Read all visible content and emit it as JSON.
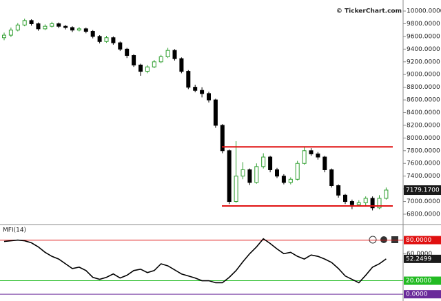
{
  "chart_data": {
    "type": "candlestick",
    "watermark": "© TickerChart.com",
    "up_color": "#2e9e2e",
    "down_color": "#000000",
    "candles": [
      {
        "o": 9580,
        "h": 9660,
        "l": 9540,
        "c": 9620
      },
      {
        "o": 9620,
        "h": 9740,
        "l": 9590,
        "c": 9700
      },
      {
        "o": 9700,
        "h": 9810,
        "l": 9680,
        "c": 9780
      },
      {
        "o": 9780,
        "h": 9880,
        "l": 9760,
        "c": 9850
      },
      {
        "o": 9850,
        "h": 9870,
        "l": 9770,
        "c": 9800
      },
      {
        "o": 9800,
        "h": 9820,
        "l": 9690,
        "c": 9720
      },
      {
        "o": 9720,
        "h": 9790,
        "l": 9700,
        "c": 9760
      },
      {
        "o": 9760,
        "h": 9830,
        "l": 9740,
        "c": 9800
      },
      {
        "o": 9800,
        "h": 9820,
        "l": 9730,
        "c": 9760
      },
      {
        "o": 9760,
        "h": 9780,
        "l": 9710,
        "c": 9740
      },
      {
        "o": 9740,
        "h": 9760,
        "l": 9670,
        "c": 9700
      },
      {
        "o": 9700,
        "h": 9750,
        "l": 9680,
        "c": 9720
      },
      {
        "o": 9720,
        "h": 9740,
        "l": 9650,
        "c": 9680
      },
      {
        "o": 9680,
        "h": 9700,
        "l": 9570,
        "c": 9600
      },
      {
        "o": 9600,
        "h": 9620,
        "l": 9490,
        "c": 9520
      },
      {
        "o": 9520,
        "h": 9610,
        "l": 9500,
        "c": 9580
      },
      {
        "o": 9580,
        "h": 9600,
        "l": 9470,
        "c": 9500
      },
      {
        "o": 9500,
        "h": 9520,
        "l": 9370,
        "c": 9400
      },
      {
        "o": 9400,
        "h": 9420,
        "l": 9260,
        "c": 9300
      },
      {
        "o": 9300,
        "h": 9320,
        "l": 9120,
        "c": 9150
      },
      {
        "o": 9150,
        "h": 9170,
        "l": 8980,
        "c": 9050
      },
      {
        "o": 9050,
        "h": 9150,
        "l": 9020,
        "c": 9120
      },
      {
        "o": 9120,
        "h": 9230,
        "l": 9100,
        "c": 9200
      },
      {
        "o": 9200,
        "h": 9310,
        "l": 9180,
        "c": 9280
      },
      {
        "o": 9280,
        "h": 9420,
        "l": 9260,
        "c": 9380
      },
      {
        "o": 9380,
        "h": 9400,
        "l": 9220,
        "c": 9250
      },
      {
        "o": 9250,
        "h": 9270,
        "l": 9020,
        "c": 9050
      },
      {
        "o": 9050,
        "h": 9070,
        "l": 8770,
        "c": 8800
      },
      {
        "o": 8800,
        "h": 8840,
        "l": 8720,
        "c": 8750
      },
      {
        "o": 8750,
        "h": 8800,
        "l": 8640,
        "c": 8700
      },
      {
        "o": 8700,
        "h": 8730,
        "l": 8560,
        "c": 8600
      },
      {
        "o": 8600,
        "h": 8620,
        "l": 8160,
        "c": 8200
      },
      {
        "o": 8200,
        "h": 8220,
        "l": 7760,
        "c": 7800
      },
      {
        "o": 7800,
        "h": 7820,
        "l": 6960,
        "c": 7000
      },
      {
        "o": 7000,
        "h": 7950,
        "l": 6980,
        "c": 7400
      },
      {
        "o": 7400,
        "h": 7620,
        "l": 7350,
        "c": 7500
      },
      {
        "o": 7500,
        "h": 7520,
        "l": 7260,
        "c": 7300
      },
      {
        "o": 7300,
        "h": 7600,
        "l": 7280,
        "c": 7550
      },
      {
        "o": 7550,
        "h": 7760,
        "l": 7520,
        "c": 7700
      },
      {
        "o": 7700,
        "h": 7720,
        "l": 7460,
        "c": 7500
      },
      {
        "o": 7500,
        "h": 7530,
        "l": 7370,
        "c": 7400
      },
      {
        "o": 7400,
        "h": 7430,
        "l": 7270,
        "c": 7300
      },
      {
        "o": 7300,
        "h": 7380,
        "l": 7270,
        "c": 7350
      },
      {
        "o": 7350,
        "h": 7640,
        "l": 7330,
        "c": 7600
      },
      {
        "o": 7600,
        "h": 7860,
        "l": 7580,
        "c": 7800
      },
      {
        "o": 7800,
        "h": 7840,
        "l": 7720,
        "c": 7750
      },
      {
        "o": 7750,
        "h": 7780,
        "l": 7660,
        "c": 7700
      },
      {
        "o": 7700,
        "h": 7720,
        "l": 7460,
        "c": 7500
      },
      {
        "o": 7500,
        "h": 7520,
        "l": 7220,
        "c": 7250
      },
      {
        "o": 7250,
        "h": 7270,
        "l": 7060,
        "c": 7100
      },
      {
        "o": 7100,
        "h": 7120,
        "l": 6960,
        "c": 7000
      },
      {
        "o": 7000,
        "h": 7030,
        "l": 6880,
        "c": 6950
      },
      {
        "o": 6950,
        "h": 7020,
        "l": 6920,
        "c": 6980
      },
      {
        "o": 6980,
        "h": 7080,
        "l": 6940,
        "c": 7050
      },
      {
        "o": 7050,
        "h": 7080,
        "l": 6860,
        "c": 6900
      },
      {
        "o": 6900,
        "h": 7100,
        "l": 6880,
        "c": 7050
      },
      {
        "o": 7050,
        "h": 7220,
        "l": 7030,
        "c": 7180
      }
    ],
    "ylim": [
      6637,
      10174
    ],
    "yticks": [
      {
        "value": 6800,
        "label": "6800.0000"
      },
      {
        "value": 7000,
        "label": "7000.0000"
      },
      {
        "value": 7200,
        "label": "7200.0000"
      },
      {
        "value": 7400,
        "label": "7400.0000"
      },
      {
        "value": 7600,
        "label": "7600.0000"
      },
      {
        "value": 7800,
        "label": "7800.0000"
      },
      {
        "value": 8000,
        "label": "8000.0000"
      },
      {
        "value": 8200,
        "label": "8200.0000"
      },
      {
        "value": 8400,
        "label": "8400.0000"
      },
      {
        "value": 8600,
        "label": "8600.0000"
      },
      {
        "value": 8800,
        "label": "8800.0000"
      },
      {
        "value": 9000,
        "label": "9000.0000"
      },
      {
        "value": 9200,
        "label": "9200.0000"
      },
      {
        "value": 9400,
        "label": "9400.0000"
      },
      {
        "value": 9600,
        "label": "9600.0000"
      },
      {
        "value": 9800,
        "label": "9800.0000"
      },
      {
        "value": 10000,
        "label": "10000.0000"
      }
    ],
    "last_price": {
      "value": 7179.17,
      "label": "7179.1700"
    },
    "trend_lines": [
      {
        "value": 7860,
        "color": "#e01010"
      },
      {
        "value": 6930,
        "color": "#e01010"
      }
    ],
    "indicator": {
      "type": "line",
      "title": "MFI(14)",
      "color": "#000000",
      "values": [
        78,
        79,
        80,
        79,
        76,
        70,
        62,
        56,
        52,
        45,
        38,
        40,
        35,
        25,
        22,
        25,
        30,
        24,
        28,
        35,
        37,
        32,
        35,
        45,
        42,
        36,
        30,
        27,
        24,
        20,
        20,
        17,
        17,
        25,
        35,
        48,
        60,
        70,
        82,
        75,
        67,
        60,
        62,
        56,
        52,
        58,
        56,
        52,
        47,
        38,
        27,
        22,
        17,
        28,
        40,
        45,
        52.2499
      ],
      "last_label": "52.2499",
      "ylim": [
        -10,
        102
      ],
      "yticks": [
        {
          "value": 60,
          "label": "60.0000"
        }
      ],
      "levels": [
        {
          "value": 80,
          "label": "80.0000",
          "color": "#e01010"
        },
        {
          "value": 20,
          "label": "20.0000",
          "color": "#22bb22"
        },
        {
          "value": 0,
          "label": "0.0000",
          "color": "#6a2a9a"
        }
      ]
    }
  }
}
